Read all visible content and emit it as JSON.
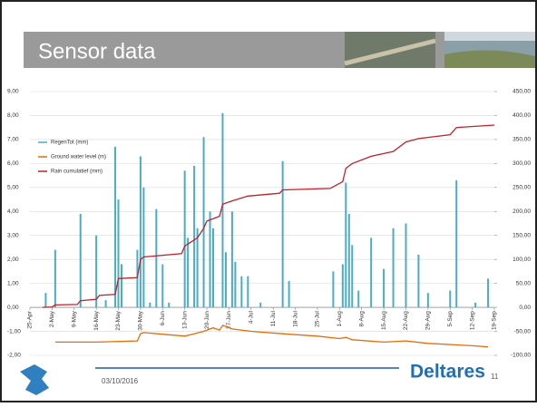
{
  "title": "Sensor data",
  "footer": {
    "date": "03/10/2016",
    "logo": "Deltares",
    "page": "11"
  },
  "chart_data": {
    "type": "combo",
    "legend": "upper left",
    "grid": true,
    "xlim": [
      "25-Apr",
      "19-Sep"
    ],
    "xticks": [
      "25-Apr",
      "2-May",
      "9-May",
      "16-May",
      "23-May",
      "30-May",
      "6-Jun",
      "13-Jun",
      "20-Jun",
      "27-Jun",
      "4-Jul",
      "11-Jul",
      "18-Jul",
      "25-Jul",
      "1-Aug",
      "8-Aug",
      "15-Aug",
      "22-Aug",
      "29-Aug",
      "5-Sep",
      "12-Sep",
      "19-Sep"
    ],
    "ylim": [
      -2,
      9
    ],
    "yticks": [
      {
        "value": -2,
        "label": "-2,00"
      },
      {
        "value": -1,
        "label": "-1,00"
      },
      {
        "value": 0,
        "label": "0,00"
      },
      {
        "value": 1,
        "label": "1,00"
      },
      {
        "value": 2,
        "label": "2,00"
      },
      {
        "value": 3,
        "label": "3,00"
      },
      {
        "value": 4,
        "label": "4,00"
      },
      {
        "value": 5,
        "label": "5,00"
      },
      {
        "value": 6,
        "label": "6,00"
      },
      {
        "value": 7,
        "label": "7,00"
      },
      {
        "value": 8,
        "label": "8,00"
      },
      {
        "value": 9,
        "label": "9,00"
      }
    ],
    "y2lim": [
      -100,
      450
    ],
    "y2ticks": [
      {
        "value": -100,
        "label": "-100,00"
      },
      {
        "value": -50,
        "label": "-50,00"
      },
      {
        "value": 0,
        "label": "0,00"
      },
      {
        "value": 50,
        "label": "50,00"
      },
      {
        "value": 100,
        "label": "100,00"
      },
      {
        "value": 150,
        "label": "150,00"
      },
      {
        "value": 200,
        "label": "200,00"
      },
      {
        "value": 250,
        "label": "250,00"
      },
      {
        "value": 300,
        "label": "300,00"
      },
      {
        "value": 350,
        "label": "350,00"
      },
      {
        "value": 400,
        "label": "400,00"
      },
      {
        "value": 450,
        "label": "450,00"
      }
    ],
    "series": [
      {
        "name": "RegenTot (mm)",
        "type": "bar",
        "color": "#4bacc6",
        "x": [
          "30-Apr",
          "3-May",
          "11-May",
          "16-May",
          "19-May",
          "22-May",
          "23-May",
          "24-May",
          "29-May",
          "30-May",
          "31-May",
          "2-Jun",
          "4-Jun",
          "6-Jun",
          "8-Jun",
          "13-Jun",
          "14-Jun",
          "16-Jun",
          "17-Jun",
          "19-Jun",
          "21-Jun",
          "22-Jun",
          "25-Jun",
          "26-Jun",
          "28-Jun",
          "29-Jun",
          "1-Jul",
          "3-Jul",
          "7-Jul",
          "14-Jul",
          "16-Jul",
          "30-Jul",
          "2-Aug",
          "3-Aug",
          "4-Aug",
          "5-Aug",
          "7-Aug",
          "11-Aug",
          "15-Aug",
          "18-Aug",
          "22-Aug",
          "26-Aug",
          "29-Aug",
          "5-Sep",
          "7-Sep",
          "13-Sep",
          "17-Sep"
        ],
        "values": [
          0.6,
          2.4,
          3.9,
          3.0,
          0.3,
          6.7,
          4.5,
          1.8,
          2.4,
          6.3,
          5.0,
          0.2,
          4.1,
          1.8,
          0.2,
          5.7,
          2.9,
          5.9,
          3.3,
          7.1,
          4.0,
          3.3,
          8.1,
          2.3,
          4.0,
          1.9,
          1.3,
          1.3,
          0.2,
          6.1,
          1.1,
          1.5,
          1.8,
          5.2,
          3.9,
          2.6,
          0.7,
          2.9,
          1.6,
          3.3,
          3.5,
          2.2,
          0.6,
          0.7,
          5.3,
          0.2,
          1.2
        ]
      },
      {
        "name": "Ground water level (m)",
        "type": "line",
        "color": "#e46c0a",
        "x": [
          "3-May",
          "16-May",
          "29-May",
          "30-May",
          "31-May",
          "6-Jun",
          "13-Jun",
          "16-Jun",
          "19-Jun",
          "22-Jun",
          "24-Jun",
          "25-Jun",
          "28-Jun",
          "4-Jul",
          "14-Jul",
          "25-Jul",
          "1-Aug",
          "3-Aug",
          "5-Aug",
          "15-Aug",
          "22-Aug",
          "29-Aug",
          "12-Sep",
          "17-Sep"
        ],
        "values": [
          -1.45,
          -1.45,
          -1.4,
          -1.1,
          -1.05,
          -1.12,
          -1.2,
          -1.1,
          -1.0,
          -0.85,
          -0.95,
          -0.75,
          -0.9,
          -1.0,
          -1.1,
          -1.2,
          -1.3,
          -1.25,
          -1.35,
          -1.45,
          -1.4,
          -1.5,
          -1.6,
          -1.65
        ]
      },
      {
        "name": "Rain cumulatief (mm)",
        "type": "line",
        "axis": "y2",
        "color": "#c0202a",
        "x": [
          "29-Apr",
          "2-May",
          "3-May",
          "10-May",
          "11-May",
          "16-May",
          "17-May",
          "22-May",
          "23-May",
          "29-May",
          "30-May",
          "31-May",
          "12-Jun",
          "13-Jun",
          "17-Jun",
          "19-Jun",
          "20-Jun",
          "24-Jun",
          "25-Jun",
          "28-Jun",
          "3-Jul",
          "13-Jul",
          "14-Jul",
          "29-Jul",
          "2-Aug",
          "3-Aug",
          "5-Aug",
          "11-Aug",
          "18-Aug",
          "22-Aug",
          "26-Aug",
          "5-Sep",
          "7-Sep",
          "19-Sep"
        ],
        "values": [
          0,
          1,
          5,
          6,
          14,
          17,
          25,
          27,
          60,
          62,
          100,
          105,
          112,
          128,
          145,
          165,
          180,
          190,
          215,
          222,
          232,
          238,
          245,
          248,
          262,
          290,
          300,
          315,
          325,
          345,
          352,
          360,
          375,
          380
        ]
      }
    ]
  }
}
